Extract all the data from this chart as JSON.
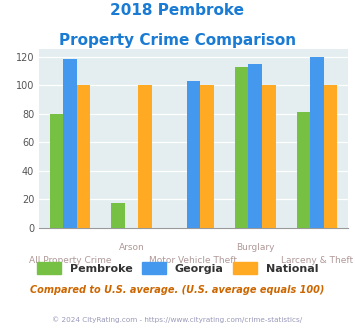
{
  "title_line1": "2018 Pembroke",
  "title_line2": "Property Crime Comparison",
  "cat_labels_row1": [
    "",
    "Arson",
    "",
    "Burglary",
    ""
  ],
  "cat_labels_row2": [
    "All Property Crime",
    "",
    "Motor Vehicle Theft",
    "",
    "Larceny & Theft"
  ],
  "pembroke": [
    80,
    17,
    0,
    113,
    81
  ],
  "georgia": [
    118,
    0,
    103,
    115,
    120
  ],
  "national": [
    100,
    100,
    100,
    100,
    100
  ],
  "color_pembroke": "#76c043",
  "color_georgia": "#4499ee",
  "color_national": "#ffaa22",
  "color_title": "#1a7bd4",
  "color_xlabel": "#b09898",
  "color_note": "#cc6600",
  "color_footer": "#9999bb",
  "color_bg": "#e4eef0",
  "ylim": [
    0,
    125
  ],
  "yticks": [
    0,
    20,
    40,
    60,
    80,
    100,
    120
  ],
  "note_text": "Compared to U.S. average. (U.S. average equals 100)",
  "footer_text": "© 2024 CityRating.com - https://www.cityrating.com/crime-statistics/",
  "legend_labels": [
    "Pembroke",
    "Georgia",
    "National"
  ]
}
